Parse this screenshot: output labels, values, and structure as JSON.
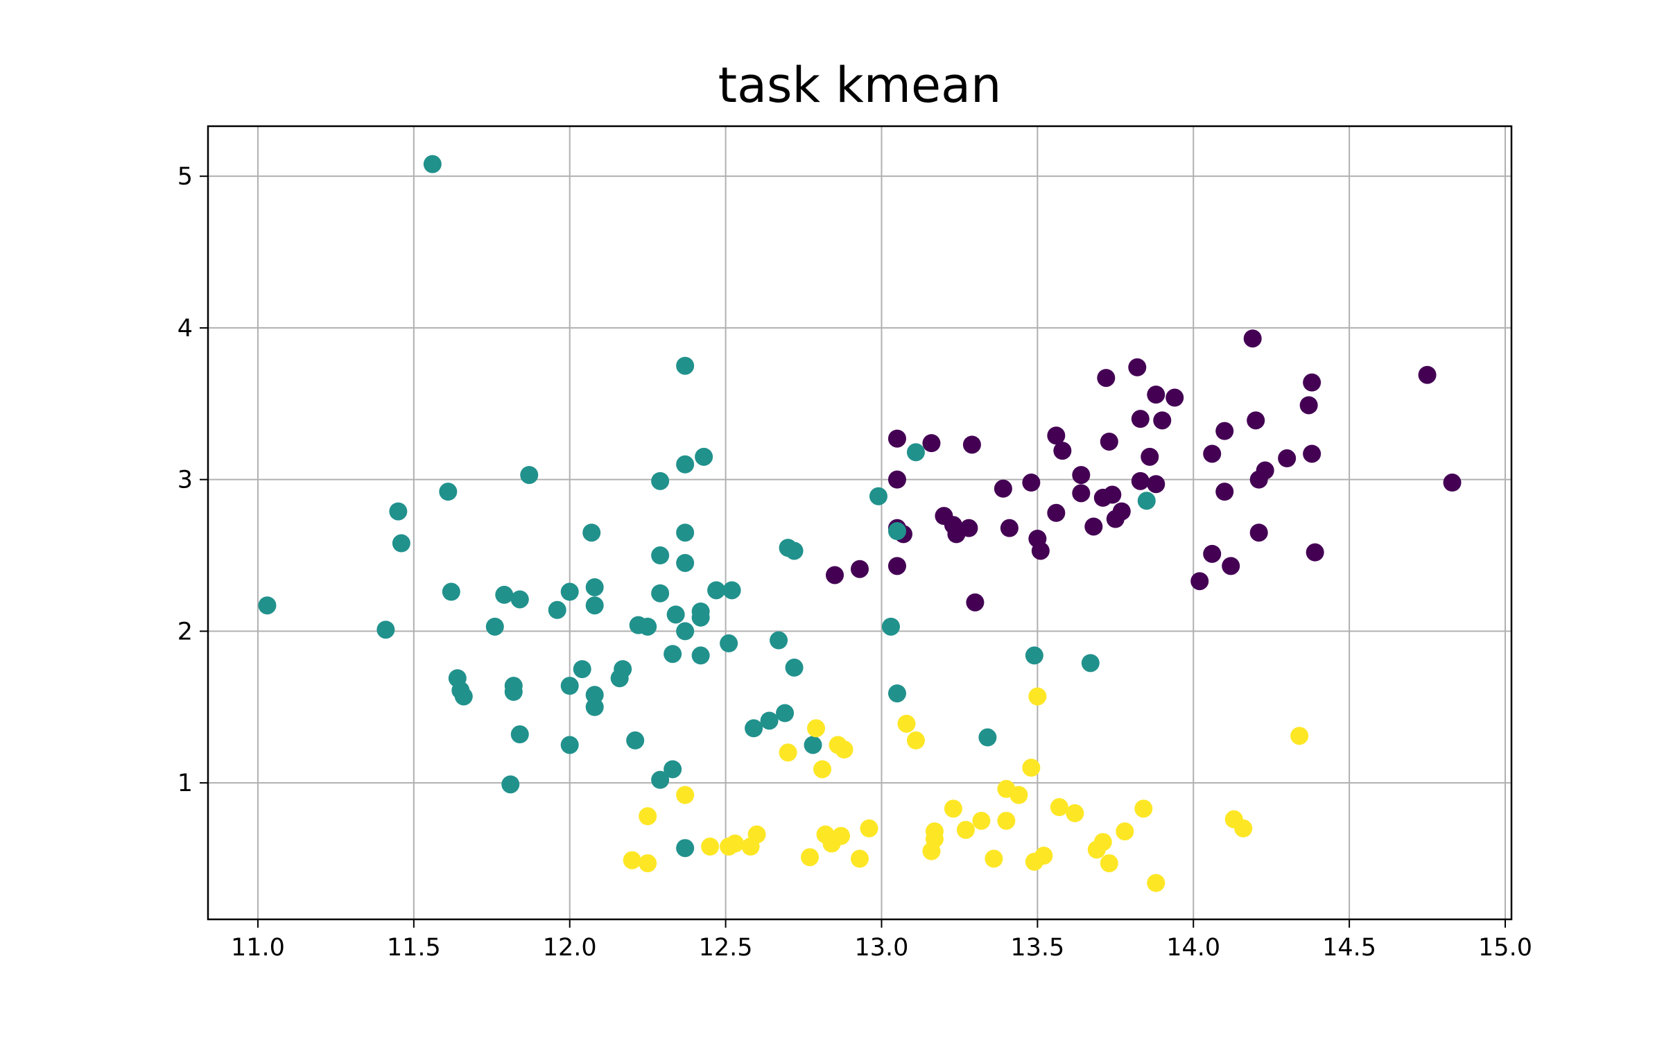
{
  "chart_data": {
    "type": "scatter",
    "title": "task kmean",
    "xlabel": "",
    "ylabel": "",
    "xlim": [
      10.84,
      15.02
    ],
    "ylim": [
      0.1,
      5.33
    ],
    "xticks": [
      11.0,
      11.5,
      12.0,
      12.5,
      13.0,
      13.5,
      14.0,
      14.5,
      15.0
    ],
    "xtick_labels": [
      "11.0",
      "11.5",
      "12.0",
      "12.5",
      "13.0",
      "13.5",
      "14.0",
      "14.5",
      "15.0"
    ],
    "yticks": [
      1,
      2,
      3,
      4,
      5
    ],
    "ytick_labels": [
      "1",
      "2",
      "3",
      "4",
      "5"
    ],
    "grid": true,
    "series": [
      {
        "color": "#440154",
        "points": [
          [
            13.05,
            3.27
          ],
          [
            13.16,
            3.24
          ],
          [
            13.29,
            3.23
          ],
          [
            13.56,
            3.29
          ],
          [
            13.58,
            3.19
          ],
          [
            13.73,
            3.25
          ],
          [
            13.72,
            3.67
          ],
          [
            13.82,
            3.74
          ],
          [
            13.83,
            3.4
          ],
          [
            13.86,
            3.15
          ],
          [
            13.88,
            3.56
          ],
          [
            13.9,
            3.39
          ],
          [
            13.94,
            3.54
          ],
          [
            14.06,
            3.17
          ],
          [
            14.1,
            3.32
          ],
          [
            14.19,
            3.93
          ],
          [
            14.2,
            3.39
          ],
          [
            14.3,
            3.14
          ],
          [
            14.37,
            3.49
          ],
          [
            14.38,
            3.64
          ],
          [
            14.38,
            3.17
          ],
          [
            14.75,
            3.69
          ],
          [
            14.83,
            2.98
          ],
          [
            14.21,
            3.0
          ],
          [
            14.23,
            3.06
          ],
          [
            14.1,
            2.92
          ],
          [
            13.83,
            2.99
          ],
          [
            13.88,
            2.97
          ],
          [
            13.64,
            3.03
          ],
          [
            13.74,
            2.9
          ],
          [
            13.71,
            2.88
          ],
          [
            13.64,
            2.91
          ],
          [
            13.48,
            2.98
          ],
          [
            13.39,
            2.94
          ],
          [
            13.05,
            3.0
          ],
          [
            13.2,
            2.76
          ],
          [
            13.23,
            2.7
          ],
          [
            13.24,
            2.64
          ],
          [
            13.28,
            2.68
          ],
          [
            13.41,
            2.68
          ],
          [
            13.5,
            2.61
          ],
          [
            13.51,
            2.53
          ],
          [
            13.56,
            2.78
          ],
          [
            13.68,
            2.69
          ],
          [
            13.75,
            2.74
          ],
          [
            13.77,
            2.79
          ],
          [
            13.05,
            2.68
          ],
          [
            13.07,
            2.64
          ],
          [
            13.05,
            2.43
          ],
          [
            12.93,
            2.41
          ],
          [
            12.85,
            2.37
          ],
          [
            13.3,
            2.19
          ],
          [
            14.06,
            2.51
          ],
          [
            14.12,
            2.43
          ],
          [
            14.02,
            2.33
          ],
          [
            14.21,
            2.65
          ],
          [
            14.39,
            2.52
          ]
        ]
      },
      {
        "color": "#21918c",
        "points": [
          [
            11.56,
            5.08
          ],
          [
            12.37,
            3.75
          ],
          [
            12.43,
            3.15
          ],
          [
            12.37,
            3.1
          ],
          [
            11.87,
            3.03
          ],
          [
            12.29,
            2.99
          ],
          [
            11.61,
            2.92
          ],
          [
            11.45,
            2.79
          ],
          [
            11.46,
            2.58
          ],
          [
            12.07,
            2.65
          ],
          [
            12.37,
            2.65
          ],
          [
            12.29,
            2.5
          ],
          [
            12.37,
            2.45
          ],
          [
            12.7,
            2.55
          ],
          [
            12.72,
            2.53
          ],
          [
            11.03,
            2.17
          ],
          [
            11.62,
            2.26
          ],
          [
            11.79,
            2.24
          ],
          [
            11.84,
            2.21
          ],
          [
            11.96,
            2.14
          ],
          [
            12.0,
            2.26
          ],
          [
            12.08,
            2.29
          ],
          [
            12.08,
            2.17
          ],
          [
            12.29,
            2.25
          ],
          [
            12.42,
            2.13
          ],
          [
            12.42,
            2.09
          ],
          [
            12.34,
            2.11
          ],
          [
            12.47,
            2.27
          ],
          [
            12.52,
            2.27
          ],
          [
            11.41,
            2.01
          ],
          [
            11.76,
            2.03
          ],
          [
            12.22,
            2.04
          ],
          [
            12.25,
            2.03
          ],
          [
            12.37,
            2.0
          ],
          [
            12.33,
            1.85
          ],
          [
            12.42,
            1.84
          ],
          [
            12.51,
            1.92
          ],
          [
            12.67,
            1.94
          ],
          [
            12.04,
            1.75
          ],
          [
            12.17,
            1.75
          ],
          [
            12.16,
            1.69
          ],
          [
            11.64,
            1.69
          ],
          [
            11.65,
            1.61
          ],
          [
            11.66,
            1.57
          ],
          [
            11.82,
            1.64
          ],
          [
            11.82,
            1.6
          ],
          [
            12.0,
            1.64
          ],
          [
            12.08,
            1.58
          ],
          [
            12.08,
            1.5
          ],
          [
            12.72,
            1.76
          ],
          [
            11.84,
            1.32
          ],
          [
            12.0,
            1.25
          ],
          [
            12.21,
            1.28
          ],
          [
            12.59,
            1.36
          ],
          [
            12.64,
            1.41
          ],
          [
            12.69,
            1.46
          ],
          [
            12.78,
            1.25
          ],
          [
            11.81,
            0.99
          ],
          [
            12.29,
            1.02
          ],
          [
            12.33,
            1.09
          ],
          [
            12.37,
            0.57
          ],
          [
            12.99,
            2.89
          ],
          [
            13.11,
            3.18
          ],
          [
            13.05,
            2.66
          ],
          [
            13.03,
            2.03
          ],
          [
            13.05,
            1.59
          ],
          [
            13.34,
            1.3
          ],
          [
            13.49,
            1.84
          ],
          [
            13.67,
            1.79
          ],
          [
            13.85,
            2.86
          ]
        ]
      },
      {
        "color": "#fde725",
        "points": [
          [
            12.25,
            0.78
          ],
          [
            12.37,
            0.92
          ],
          [
            12.2,
            0.49
          ],
          [
            12.25,
            0.47
          ],
          [
            12.45,
            0.58
          ],
          [
            12.51,
            0.58
          ],
          [
            12.53,
            0.6
          ],
          [
            12.58,
            0.58
          ],
          [
            12.6,
            0.66
          ],
          [
            12.7,
            1.2
          ],
          [
            12.79,
            1.36
          ],
          [
            12.81,
            1.09
          ],
          [
            12.86,
            1.25
          ],
          [
            12.88,
            1.22
          ],
          [
            12.77,
            0.51
          ],
          [
            12.82,
            0.66
          ],
          [
            12.84,
            0.6
          ],
          [
            12.87,
            0.65
          ],
          [
            12.93,
            0.5
          ],
          [
            12.96,
            0.7
          ],
          [
            13.08,
            1.39
          ],
          [
            13.11,
            1.28
          ],
          [
            13.16,
            0.55
          ],
          [
            13.17,
            0.63
          ],
          [
            13.17,
            0.68
          ],
          [
            13.23,
            0.83
          ],
          [
            13.27,
            0.69
          ],
          [
            13.32,
            0.75
          ],
          [
            13.36,
            0.5
          ],
          [
            13.4,
            0.96
          ],
          [
            13.44,
            0.92
          ],
          [
            13.4,
            0.75
          ],
          [
            13.48,
            1.1
          ],
          [
            13.5,
            1.57
          ],
          [
            13.49,
            0.48
          ],
          [
            13.52,
            0.52
          ],
          [
            13.57,
            0.84
          ],
          [
            13.62,
            0.8
          ],
          [
            13.69,
            0.56
          ],
          [
            13.71,
            0.61
          ],
          [
            13.73,
            0.47
          ],
          [
            13.78,
            0.68
          ],
          [
            13.84,
            0.83
          ],
          [
            13.88,
            0.34
          ],
          [
            14.13,
            0.76
          ],
          [
            14.16,
            0.7
          ],
          [
            14.34,
            1.31
          ]
        ]
      }
    ]
  }
}
